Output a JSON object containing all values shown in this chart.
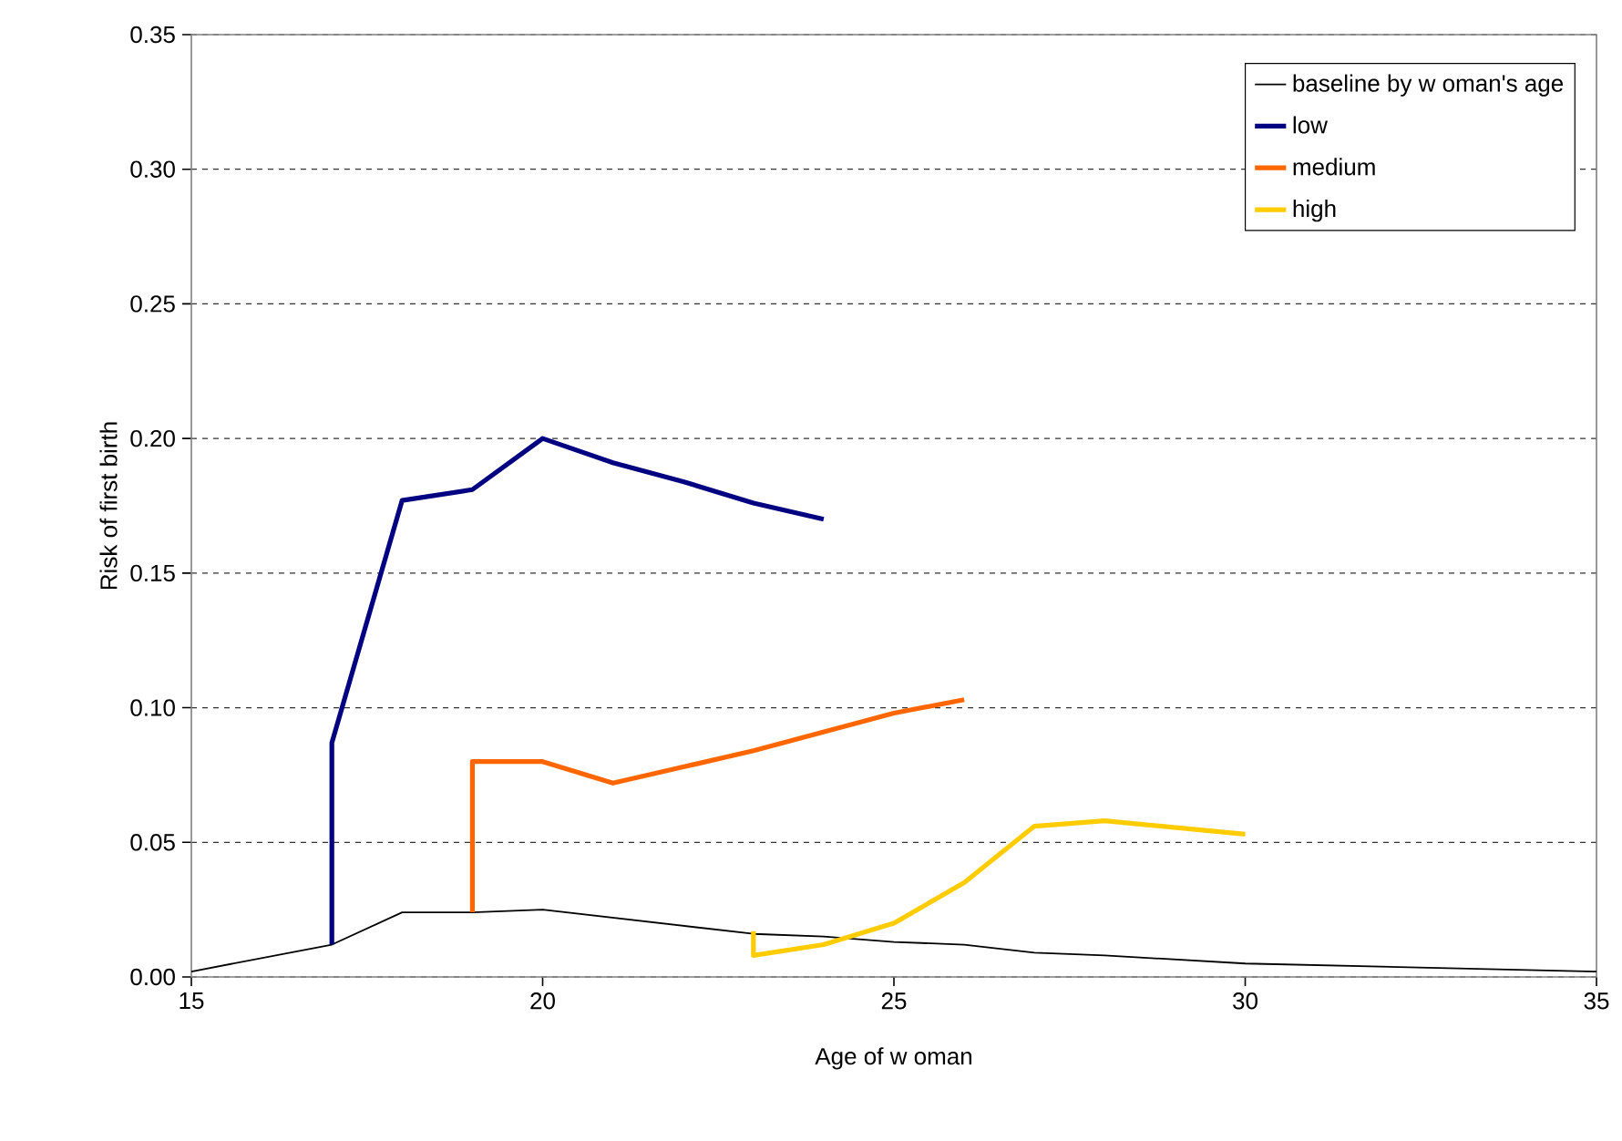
{
  "chart_data": {
    "type": "line",
    "xlabel": "Age of w oman",
    "ylabel": "Risk of first birth",
    "xlim": [
      15,
      35
    ],
    "xticks": [
      15,
      20,
      25,
      30,
      35
    ],
    "ylim": [
      0,
      0.35
    ],
    "yticks": [
      {
        "value": 0,
        "label": "0.00"
      },
      {
        "value": 0.05,
        "label": "0.05"
      },
      {
        "value": 0.1,
        "label": "0.10"
      },
      {
        "value": 0.15,
        "label": "0.15"
      },
      {
        "value": 0.2,
        "label": "0.20"
      },
      {
        "value": 0.25,
        "label": "0.25"
      },
      {
        "value": 0.3,
        "label": "0.30"
      },
      {
        "value": 0.35,
        "label": "0.35"
      }
    ],
    "grid": "y",
    "legend": "top right",
    "marker": "none",
    "series": [
      {
        "name": "baseline by w oman's age",
        "color": "#000000",
        "x": [
          15,
          17,
          18,
          19,
          20,
          21,
          22,
          23,
          24,
          25,
          26,
          27,
          28,
          30,
          35
        ],
        "values": [
          0.002,
          0.012,
          0.024,
          0.024,
          0.025,
          0.022,
          0.019,
          0.016,
          0.015,
          0.013,
          0.012,
          0.009,
          0.008,
          0.005,
          0.002
        ]
      },
      {
        "name": "low",
        "color": "#000080",
        "x": [
          17,
          17,
          18,
          19,
          20,
          21,
          22,
          23,
          24
        ],
        "values": [
          0.012,
          0.087,
          0.177,
          0.181,
          0.2,
          0.191,
          0.184,
          0.176,
          0.17
        ]
      },
      {
        "name": "medium",
        "color": "#ff6600",
        "x": [
          19,
          19,
          20,
          21,
          22,
          23,
          24,
          25,
          26
        ],
        "values": [
          0.024,
          0.08,
          0.08,
          0.072,
          0.078,
          0.084,
          0.091,
          0.098,
          0.103
        ]
      },
      {
        "name": "high",
        "color": "#ffcc00",
        "x": [
          23,
          23,
          24,
          25,
          26,
          27,
          28,
          30
        ],
        "values": [
          0.017,
          0.008,
          0.012,
          0.02,
          0.035,
          0.056,
          0.058,
          0.053
        ]
      }
    ]
  }
}
